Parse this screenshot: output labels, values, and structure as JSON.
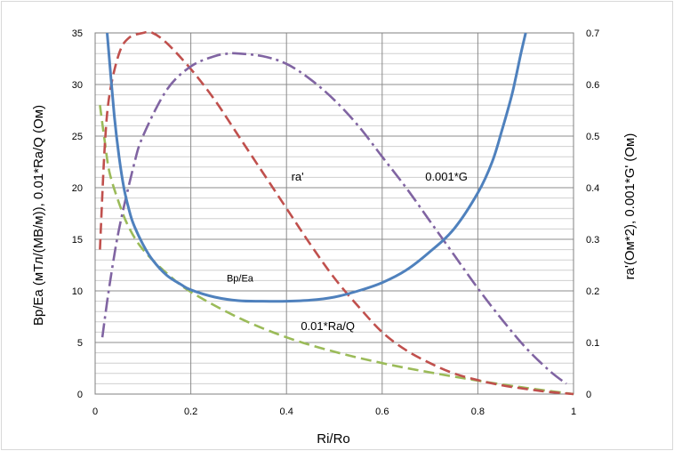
{
  "chart_data": {
    "type": "line",
    "xlabel": "Ri/Ro",
    "ylabel_left": "Bp/Ea (мТл/(МВ/м)),  0.01*Ra/Q  (Ом)",
    "ylabel_right": "ra'(Ом*2),  0.001*G' (Ом)",
    "xlim": [
      0,
      1
    ],
    "ylim_left": [
      0,
      35
    ],
    "ylim_right": [
      0,
      0.7
    ],
    "x_ticks": [
      "0",
      "0.2",
      "0.4",
      "0.6",
      "0.8",
      "1"
    ],
    "y_left_ticks": [
      "0",
      "5",
      "10",
      "15",
      "20",
      "25",
      "30",
      "35"
    ],
    "y_right_ticks": [
      "0",
      "0.1",
      "0.2",
      "0.3",
      "0.4",
      "0.5",
      "0.6",
      "0.7"
    ],
    "grid": true,
    "annotations": [
      {
        "text": "ra'",
        "x": 0.41,
        "y": 20.7,
        "size": "normal"
      },
      {
        "text": "0.001*G",
        "x": 0.69,
        "y": 20.7,
        "size": "normal"
      },
      {
        "text": "Bp/Ea",
        "x": 0.275,
        "y": 10.9,
        "size": "small"
      },
      {
        "text": "0.01*Ra/Q",
        "x": 0.43,
        "y": 6.2,
        "size": "normal"
      }
    ],
    "series": [
      {
        "label": "Bp/Ea",
        "axis": "left",
        "color": "#4f81bd",
        "style": "solid",
        "x": [
          0.025,
          0.04,
          0.05,
          0.06,
          0.07,
          0.08,
          0.1,
          0.12,
          0.15,
          0.18,
          0.2,
          0.25,
          0.3,
          0.35,
          0.4,
          0.45,
          0.5,
          0.55,
          0.6,
          0.65,
          0.7,
          0.75,
          0.8,
          0.83,
          0.85,
          0.87,
          0.88,
          0.89,
          0.9
        ],
        "y": [
          35,
          27,
          23,
          20,
          18,
          16.5,
          14.5,
          13,
          11.5,
          10.6,
          10.1,
          9.4,
          9.05,
          9.0,
          9.0,
          9.1,
          9.4,
          10.0,
          10.8,
          12.0,
          13.8,
          16.0,
          19.5,
          22.5,
          25.5,
          28.8,
          30.8,
          33.0,
          35
        ]
      },
      {
        "label": "0.01*Ra/Q",
        "axis": "left",
        "color": "#9bbb59",
        "style": "dash",
        "x": [
          0.01,
          0.02,
          0.03,
          0.05,
          0.07,
          0.1,
          0.15,
          0.2,
          0.3,
          0.4,
          0.5,
          0.6,
          0.7,
          0.8,
          0.9,
          1.0
        ],
        "y": [
          28,
          24.5,
          21.5,
          18.5,
          16.2,
          14.0,
          11.7,
          9.9,
          7.4,
          5.5,
          4.1,
          3.0,
          2.1,
          1.3,
          0.6,
          0.0
        ]
      },
      {
        "label": "ra'",
        "axis": "right",
        "color": "#c0504d",
        "style": "dash",
        "x": [
          0.01,
          0.02,
          0.03,
          0.05,
          0.07,
          0.1,
          0.12,
          0.15,
          0.2,
          0.25,
          0.3,
          0.35,
          0.4,
          0.45,
          0.5,
          0.55,
          0.6,
          0.65,
          0.7,
          0.75,
          0.8,
          0.85,
          0.9,
          0.95,
          1.0
        ],
        "y": [
          0.28,
          0.48,
          0.58,
          0.66,
          0.69,
          0.7,
          0.7,
          0.68,
          0.63,
          0.57,
          0.5,
          0.43,
          0.36,
          0.29,
          0.225,
          0.17,
          0.12,
          0.085,
          0.06,
          0.04,
          0.027,
          0.017,
          0.01,
          0.004,
          0.0
        ]
      },
      {
        "label": "0.001*G",
        "axis": "right",
        "color": "#8064a2",
        "style": "dashdot",
        "x": [
          0.015,
          0.03,
          0.05,
          0.08,
          0.1,
          0.15,
          0.2,
          0.25,
          0.28,
          0.3,
          0.35,
          0.4,
          0.45,
          0.5,
          0.55,
          0.6,
          0.65,
          0.7,
          0.75,
          0.8,
          0.85,
          0.9,
          0.95,
          0.985
        ],
        "y": [
          0.11,
          0.21,
          0.32,
          0.44,
          0.5,
          0.59,
          0.635,
          0.655,
          0.66,
          0.66,
          0.655,
          0.64,
          0.61,
          0.57,
          0.52,
          0.46,
          0.4,
          0.335,
          0.27,
          0.205,
          0.145,
          0.09,
          0.045,
          0.02
        ]
      }
    ]
  }
}
